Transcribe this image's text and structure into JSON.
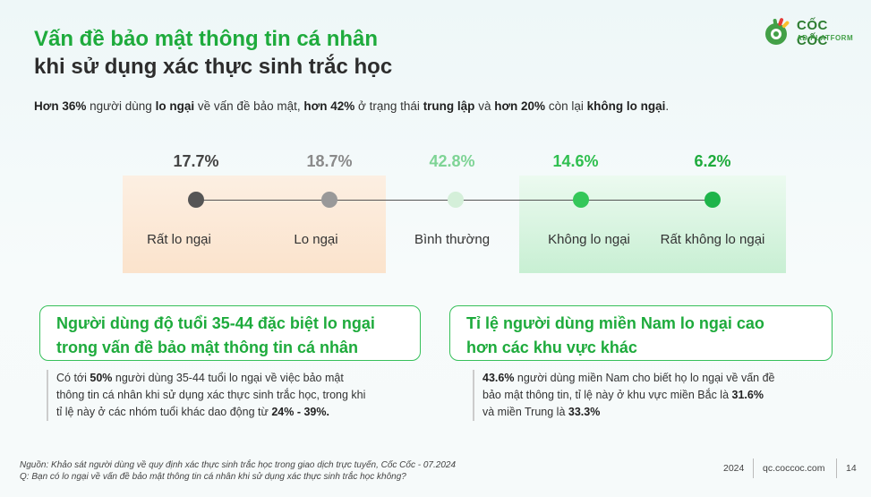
{
  "title": {
    "line1": "Vấn đề bảo mật thông tin cá nhân",
    "line2": "khi sử dụng xác thực sinh trắc học"
  },
  "logo": {
    "name": "CỐC CỐC",
    "sub": "AD PLATFORM",
    "colors": [
      "#e53935",
      "#fbc02d",
      "#43a047"
    ]
  },
  "summary": {
    "p1": "Hơn 36%",
    "p2": " người dùng ",
    "p3": "lo ngại",
    "p4": " về vấn đề bảo mật, ",
    "p5": "hơn 42%",
    "p6": " ở trạng thái ",
    "p7": "trung lập",
    "p8": " và ",
    "p9": "hơn 20%",
    "p10": " còn lại ",
    "p11": "không lo ngại",
    "p12": "."
  },
  "scale": [
    {
      "pct": "17.7%",
      "label": "Rất lo ngại",
      "color": "#555555",
      "pct_color": "#444444"
    },
    {
      "pct": "18.7%",
      "label": "Lo ngại",
      "color": "#999999",
      "pct_color": "#8a8a8a"
    },
    {
      "pct": "42.8%",
      "label": "Bình thường",
      "color": "#d4efd9",
      "pct_color": "#7ed495"
    },
    {
      "pct": "14.6%",
      "label": "Không lo ngại",
      "color": "#34c759",
      "pct_color": "#2fbf4f"
    },
    {
      "pct": "6.2%",
      "label": "Rất không lo ngại",
      "color": "#1eb44a",
      "pct_color": "#1eab3c"
    }
  ],
  "card_left": {
    "title1": "Người dùng độ tuổi 35-44 đặc biệt lo ngại",
    "title2": "trong vấn đề bảo mật thông tin cá nhân",
    "n1": "Có tới ",
    "n2": "50%",
    "n3": " người dùng 35-44 tuổi lo ngại về việc bảo mật",
    "n4": "thông tin cá nhân khi sử dụng xác thực sinh trắc học, trong khi",
    "n5": "tỉ lệ này ở các nhóm tuổi khác dao động từ ",
    "n6": "24% - 39%."
  },
  "card_right": {
    "title1": "Tỉ lệ người dùng miền Nam lo ngại cao",
    "title2": "hơn các khu vực khác",
    "n1": "43.6%",
    "n2": " người dùng miền Nam cho biết họ lo ngại về vấn đề",
    "n3": "bảo mật thông tin, tỉ lệ này ở khu vực miền Bắc  là ",
    "n4": "31.6%",
    "n5": "và miền Trung là ",
    "n6": "33.3%"
  },
  "footer": {
    "source": "Nguồn: Khảo sát người dùng về quy định xác thực sinh trắc học trong giao dịch trực tuyến, Cốc Cốc - 07.2024",
    "question": "Q: Bạn có lo ngại về vấn đề bảo mật thông tin cá nhân khi sử dụng xác thực sinh trắc học không?",
    "year": "2024",
    "url": "qc.coccoc.com",
    "page": "14"
  }
}
